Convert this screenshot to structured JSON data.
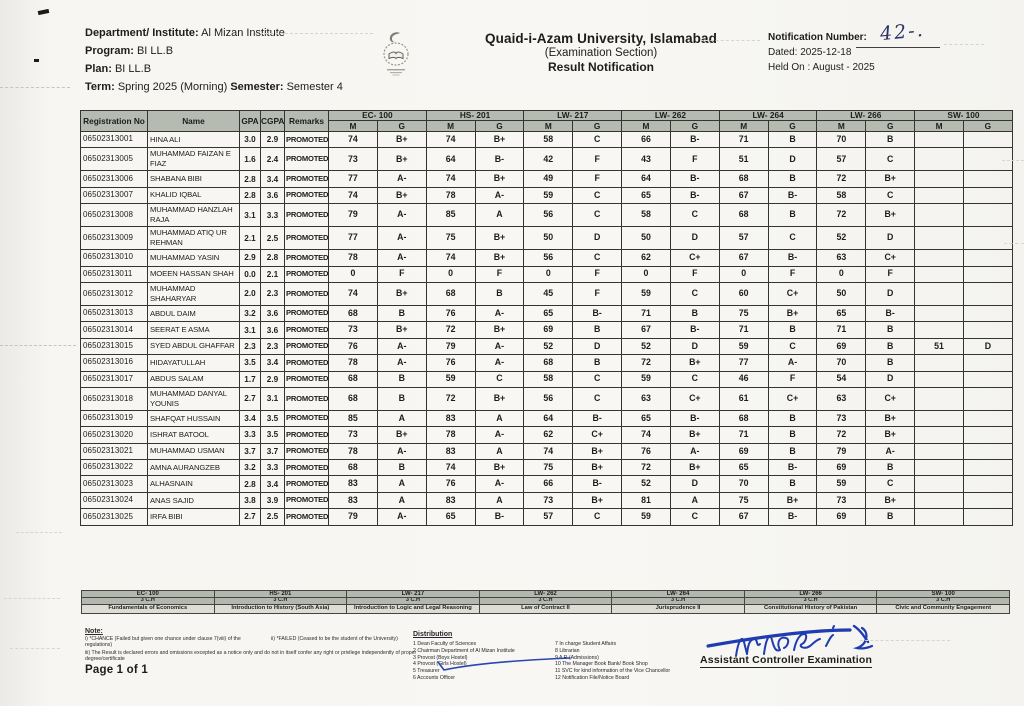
{
  "header": {
    "dept_label": "Department/ Institute:",
    "dept_value": "Al Mizan Institute",
    "program_label": "Program:",
    "program_value": "BI LL.B",
    "plan_label": "Plan:",
    "plan_value": "BI LL.B",
    "term_label": "Term:",
    "term_value": "Spring 2025 (Morning)",
    "semester_label": "Semester:",
    "semester_value": "Semester  4",
    "university": "Quaid-i-Azam University, Islamabad",
    "section": "(Examination Section)",
    "doc_title": "Result Notification",
    "notification_label": "Notification Number:",
    "notification_value": "42-.",
    "dated": "Dated: 2025-12-18",
    "held_on": "Held On : August - 2025"
  },
  "logo_name": "university-emblem",
  "table": {
    "col_reg": "Registration No",
    "col_name": "Name",
    "col_gpa": "GPA",
    "col_cgpa": "CGPA",
    "col_remarks": "Remarks",
    "col_m": "M",
    "col_g": "G",
    "courses": [
      "EC- 100",
      "HS- 201",
      "LW- 217",
      "LW- 262",
      "LW- 264",
      "LW- 266",
      "SW- 100"
    ],
    "rows": [
      {
        "reg": "06502313001",
        "name": "HINA ALI",
        "gpa": "3.0",
        "cgpa": "2.9",
        "remarks": "PROMOTED",
        "grades": [
          [
            "74",
            "B+"
          ],
          [
            "74",
            "B+"
          ],
          [
            "58",
            "C"
          ],
          [
            "66",
            "B-"
          ],
          [
            "71",
            "B"
          ],
          [
            "70",
            "B"
          ],
          [
            "",
            ""
          ]
        ]
      },
      {
        "reg": "06502313005",
        "name": "MUHAMMAD FAIZAN E FIAZ",
        "gpa": "1.6",
        "cgpa": "2.4",
        "remarks": "PROMOTED",
        "grades": [
          [
            "73",
            "B+"
          ],
          [
            "64",
            "B-"
          ],
          [
            "42",
            "F"
          ],
          [
            "43",
            "F"
          ],
          [
            "51",
            "D"
          ],
          [
            "57",
            "C"
          ],
          [
            "",
            ""
          ]
        ]
      },
      {
        "reg": "06502313006",
        "name": "SHABANA BIBI",
        "gpa": "2.8",
        "cgpa": "3.4",
        "remarks": "PROMOTED",
        "grades": [
          [
            "77",
            "A-"
          ],
          [
            "74",
            "B+"
          ],
          [
            "49",
            "F"
          ],
          [
            "64",
            "B-"
          ],
          [
            "68",
            "B"
          ],
          [
            "72",
            "B+"
          ],
          [
            "",
            ""
          ]
        ]
      },
      {
        "reg": "06502313007",
        "name": "KHALID IQBAL",
        "gpa": "2.8",
        "cgpa": "3.6",
        "remarks": "PROMOTED",
        "grades": [
          [
            "74",
            "B+"
          ],
          [
            "78",
            "A-"
          ],
          [
            "59",
            "C"
          ],
          [
            "65",
            "B-"
          ],
          [
            "67",
            "B-"
          ],
          [
            "58",
            "C"
          ],
          [
            "",
            ""
          ]
        ]
      },
      {
        "reg": "06502313008",
        "name": "MUHAMMAD HANZLAH RAJA",
        "gpa": "3.1",
        "cgpa": "3.3",
        "remarks": "PROMOTED",
        "grades": [
          [
            "79",
            "A-"
          ],
          [
            "85",
            "A"
          ],
          [
            "56",
            "C"
          ],
          [
            "58",
            "C"
          ],
          [
            "68",
            "B"
          ],
          [
            "72",
            "B+"
          ],
          [
            "",
            ""
          ]
        ]
      },
      {
        "reg": "06502313009",
        "name": "MUHAMMAD ATIQ UR REHMAN",
        "gpa": "2.1",
        "cgpa": "2.5",
        "remarks": "PROMOTED",
        "grades": [
          [
            "77",
            "A-"
          ],
          [
            "75",
            "B+"
          ],
          [
            "50",
            "D"
          ],
          [
            "50",
            "D"
          ],
          [
            "57",
            "C"
          ],
          [
            "52",
            "D"
          ],
          [
            "",
            ""
          ]
        ]
      },
      {
        "reg": "06502313010",
        "name": "MUHAMMAD YASIN",
        "gpa": "2.9",
        "cgpa": "2.8",
        "remarks": "PROMOTED",
        "grades": [
          [
            "78",
            "A-"
          ],
          [
            "74",
            "B+"
          ],
          [
            "56",
            "C"
          ],
          [
            "62",
            "C+"
          ],
          [
            "67",
            "B-"
          ],
          [
            "63",
            "C+"
          ],
          [
            "",
            ""
          ]
        ]
      },
      {
        "reg": "06502313011",
        "name": "MOEEN HASSAN SHAH",
        "gpa": "0.0",
        "cgpa": "2.1",
        "remarks": "PROMOTED",
        "grades": [
          [
            "0",
            "F"
          ],
          [
            "0",
            "F"
          ],
          [
            "0",
            "F"
          ],
          [
            "0",
            "F"
          ],
          [
            "0",
            "F"
          ],
          [
            "0",
            "F"
          ],
          [
            "",
            ""
          ]
        ]
      },
      {
        "reg": "06502313012",
        "name": "MUHAMMAD SHAHARYAR",
        "gpa": "2.0",
        "cgpa": "2.3",
        "remarks": "PROMOTED",
        "grades": [
          [
            "74",
            "B+"
          ],
          [
            "68",
            "B"
          ],
          [
            "45",
            "F"
          ],
          [
            "59",
            "C"
          ],
          [
            "60",
            "C+"
          ],
          [
            "50",
            "D"
          ],
          [
            "",
            ""
          ]
        ]
      },
      {
        "reg": "06502313013",
        "name": "ABDUL DAIM",
        "gpa": "3.2",
        "cgpa": "3.6",
        "remarks": "PROMOTED",
        "grades": [
          [
            "68",
            "B"
          ],
          [
            "76",
            "A-"
          ],
          [
            "65",
            "B-"
          ],
          [
            "71",
            "B"
          ],
          [
            "75",
            "B+"
          ],
          [
            "65",
            "B-"
          ],
          [
            "",
            ""
          ]
        ]
      },
      {
        "reg": "06502313014",
        "name": "SEERAT E ASMA",
        "gpa": "3.1",
        "cgpa": "3.6",
        "remarks": "PROMOTED",
        "grades": [
          [
            "73",
            "B+"
          ],
          [
            "72",
            "B+"
          ],
          [
            "69",
            "B"
          ],
          [
            "67",
            "B-"
          ],
          [
            "71",
            "B"
          ],
          [
            "71",
            "B"
          ],
          [
            "",
            ""
          ]
        ]
      },
      {
        "reg": "06502313015",
        "name": "SYED ABDUL GHAFFAR",
        "gpa": "2.3",
        "cgpa": "2.3",
        "remarks": "PROMOTED",
        "grades": [
          [
            "76",
            "A-"
          ],
          [
            "79",
            "A-"
          ],
          [
            "52",
            "D"
          ],
          [
            "52",
            "D"
          ],
          [
            "59",
            "C"
          ],
          [
            "69",
            "B"
          ],
          [
            "51",
            "D"
          ]
        ]
      },
      {
        "reg": "06502313016",
        "name": "HIDAYATULLAH",
        "gpa": "3.5",
        "cgpa": "3.4",
        "remarks": "PROMOTED",
        "grades": [
          [
            "78",
            "A-"
          ],
          [
            "76",
            "A-"
          ],
          [
            "68",
            "B"
          ],
          [
            "72",
            "B+"
          ],
          [
            "77",
            "A-"
          ],
          [
            "70",
            "B"
          ],
          [
            "",
            ""
          ]
        ]
      },
      {
        "reg": "06502313017",
        "name": "ABDUS SALAM",
        "gpa": "1.7",
        "cgpa": "2.9",
        "remarks": "PROMOTED",
        "grades": [
          [
            "68",
            "B"
          ],
          [
            "59",
            "C"
          ],
          [
            "58",
            "C"
          ],
          [
            "59",
            "C"
          ],
          [
            "46",
            "F"
          ],
          [
            "54",
            "D"
          ],
          [
            "",
            ""
          ]
        ]
      },
      {
        "reg": "06502313018",
        "name": "MUHAMMAD DANYAL YOUNIS",
        "gpa": "2.7",
        "cgpa": "3.1",
        "remarks": "PROMOTED",
        "grades": [
          [
            "68",
            "B"
          ],
          [
            "72",
            "B+"
          ],
          [
            "56",
            "C"
          ],
          [
            "63",
            "C+"
          ],
          [
            "61",
            "C+"
          ],
          [
            "63",
            "C+"
          ],
          [
            "",
            ""
          ]
        ]
      },
      {
        "reg": "06502313019",
        "name": "SHAFQAT HUSSAIN",
        "gpa": "3.4",
        "cgpa": "3.5",
        "remarks": "PROMOTED",
        "grades": [
          [
            "85",
            "A"
          ],
          [
            "83",
            "A"
          ],
          [
            "64",
            "B-"
          ],
          [
            "65",
            "B-"
          ],
          [
            "68",
            "B"
          ],
          [
            "73",
            "B+"
          ],
          [
            "",
            ""
          ]
        ]
      },
      {
        "reg": "06502313020",
        "name": "ISHRAT BATOOL",
        "gpa": "3.3",
        "cgpa": "3.5",
        "remarks": "PROMOTED",
        "grades": [
          [
            "73",
            "B+"
          ],
          [
            "78",
            "A-"
          ],
          [
            "62",
            "C+"
          ],
          [
            "74",
            "B+"
          ],
          [
            "71",
            "B"
          ],
          [
            "72",
            "B+"
          ],
          [
            "",
            ""
          ]
        ]
      },
      {
        "reg": "06502313021",
        "name": "MUHAMMAD USMAN",
        "gpa": "3.7",
        "cgpa": "3.7",
        "remarks": "PROMOTED",
        "grades": [
          [
            "78",
            "A-"
          ],
          [
            "83",
            "A"
          ],
          [
            "74",
            "B+"
          ],
          [
            "76",
            "A-"
          ],
          [
            "69",
            "B"
          ],
          [
            "79",
            "A-"
          ],
          [
            "",
            ""
          ]
        ]
      },
      {
        "reg": "06502313022",
        "name": "AMNA AURANGZEB",
        "gpa": "3.2",
        "cgpa": "3.3",
        "remarks": "PROMOTED",
        "grades": [
          [
            "68",
            "B"
          ],
          [
            "74",
            "B+"
          ],
          [
            "75",
            "B+"
          ],
          [
            "72",
            "B+"
          ],
          [
            "65",
            "B-"
          ],
          [
            "69",
            "B"
          ],
          [
            "",
            ""
          ]
        ]
      },
      {
        "reg": "06502313023",
        "name": "ALHASNAIN",
        "gpa": "2.8",
        "cgpa": "3.4",
        "remarks": "PROMOTED",
        "grades": [
          [
            "83",
            "A"
          ],
          [
            "76",
            "A-"
          ],
          [
            "66",
            "B-"
          ],
          [
            "52",
            "D"
          ],
          [
            "70",
            "B"
          ],
          [
            "59",
            "C"
          ],
          [
            "",
            ""
          ]
        ]
      },
      {
        "reg": "06502313024",
        "name": "ANAS SAJID",
        "gpa": "3.8",
        "cgpa": "3.9",
        "remarks": "PROMOTED",
        "grades": [
          [
            "83",
            "A"
          ],
          [
            "83",
            "A"
          ],
          [
            "73",
            "B+"
          ],
          [
            "81",
            "A"
          ],
          [
            "75",
            "B+"
          ],
          [
            "73",
            "B+"
          ],
          [
            "",
            ""
          ]
        ]
      },
      {
        "reg": "06502313025",
        "name": "IRFA BIBI",
        "gpa": "2.7",
        "cgpa": "2.5",
        "remarks": "PROMOTED",
        "grades": [
          [
            "79",
            "A-"
          ],
          [
            "65",
            "B-"
          ],
          [
            "57",
            "C"
          ],
          [
            "59",
            "C"
          ],
          [
            "67",
            "B-"
          ],
          [
            "69",
            "B"
          ],
          [
            "",
            ""
          ]
        ]
      }
    ]
  },
  "legend": {
    "items": [
      {
        "code": "EC- 100",
        "ch": "3 C.H",
        "title": "Fundamentals of Economics"
      },
      {
        "code": "HS- 201",
        "ch": "3 C.H",
        "title": "Introduction to History (South Asia)"
      },
      {
        "code": "LW- 217",
        "ch": "3 C.H",
        "title": "Introduction to Logic and Legal Reasoning"
      },
      {
        "code": "LW- 262",
        "ch": "3 C.H",
        "title": "Law of Contract II"
      },
      {
        "code": "LW- 264",
        "ch": "3 C.H",
        "title": "Jurisprudence II"
      },
      {
        "code": "LW- 266",
        "ch": "3 C.H",
        "title": "Constitutional History of Pakistan"
      },
      {
        "code": "SW- 100",
        "ch": "3 C.H",
        "title": "Civic and Community Engagement"
      }
    ]
  },
  "note": {
    "title": "Note:",
    "line_i": "i) *CHANCE (Failed but given one chance under clause 7(viii) of the regulations)",
    "line_ii": "ii) *FAILED (Ceased to be the student of the University)",
    "line_iii": "iii) The Result is declared  errors and omissions excepted as a notice only and do not in itself confer any right or privilege independently of proper degree/certificate",
    "page": "Page 1 of 1"
  },
  "distribution": {
    "title": "Distribution",
    "left": [
      "1 Dean  Faculty of  Sciences",
      "2 Chairman  Department of Al Mizan Institute",
      "3 Provost (Boys Hostel)",
      "4 Provost (Girls Hostel)",
      "5 Treasurer",
      "6 Accounts Officer"
    ],
    "right": [
      "7 In charge Student Affairs",
      "8 Librarian",
      "9 A R (Admissions)",
      "10 The Manager Book Bank/ Book Shop",
      "11 SVC for kind information of the Vice Chancellor",
      "12 Notification File/Notice Board"
    ]
  },
  "signature": {
    "label": "Assistant Controller Examination"
  }
}
